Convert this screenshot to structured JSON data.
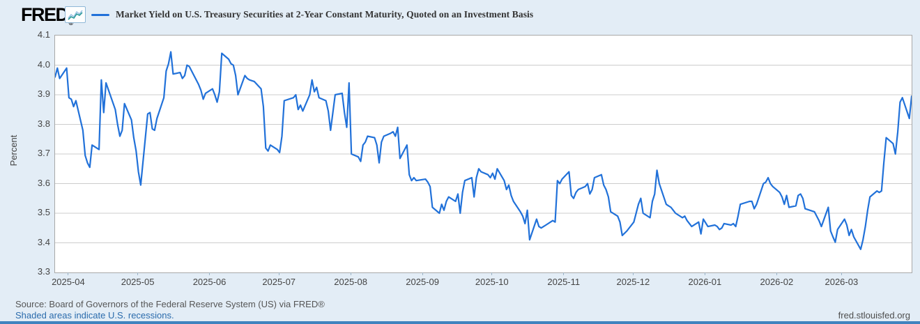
{
  "header": {
    "logo_text": "FRED",
    "logo_mark": "®",
    "series_title": "Market Yield on U.S. Treasury Securities at 2-Year Constant Maturity, Quoted on an Investment Basis"
  },
  "y_axis": {
    "title": "Percent"
  },
  "footer": {
    "source": "Source: Board of Governors of the Federal Reserve System (US) via FRED®",
    "note": "Shaded areas indicate U.S. recessions.",
    "site": "fred.stlouisfed.org"
  },
  "colors": {
    "line": "#2171d9",
    "background": "#e3edf6",
    "plot_background": "#ffffff",
    "plot_border": "#a8a8a8",
    "gridline": "#cccccc",
    "tick_mark": "#9db4c6",
    "axis_text": "#444444",
    "title_text": "#333333",
    "source_text": "#555555",
    "link_blue": "#2a6bac",
    "accent_bar": "#4083bf",
    "icon_border": "#8fb8d8",
    "icon_line_teal": "#2e9b9b",
    "icon_line_blue": "#9cc3e5"
  },
  "chart_data": {
    "type": "line",
    "title": "Market Yield on U.S. Treasury Securities at 2-Year Constant Maturity, Quoted on an Investment Basis",
    "xlabel": "",
    "ylabel": "Percent",
    "ylim": [
      3.3,
      4.1
    ],
    "y_ticks": [
      "4.1",
      "4.0",
      "3.9",
      "3.8",
      "3.7",
      "3.6",
      "3.5",
      "3.4",
      "3.3"
    ],
    "grid": "horizontal",
    "legend_position": "top-left",
    "x_domain": [
      "2025-03-26",
      "2026-03-31"
    ],
    "x_ticks": [
      {
        "label": "2025-04",
        "date": "2025-04-01"
      },
      {
        "label": "2025-05",
        "date": "2025-05-01"
      },
      {
        "label": "2025-06",
        "date": "2025-06-01"
      },
      {
        "label": "2025-07",
        "date": "2025-07-01"
      },
      {
        "label": "2025-08",
        "date": "2025-08-01"
      },
      {
        "label": "2025-09",
        "date": "2025-09-01"
      },
      {
        "label": "2025-10",
        "date": "2025-10-01"
      },
      {
        "label": "2025-11",
        "date": "2025-11-01"
      },
      {
        "label": "2025-12",
        "date": "2025-12-01"
      },
      {
        "label": "2026-01",
        "date": "2026-01-01"
      },
      {
        "label": "2026-02",
        "date": "2026-02-01"
      },
      {
        "label": "2026-03",
        "date": "2026-03-01"
      }
    ],
    "series": [
      {
        "name": "Market Yield on U.S. Treasury Securities at 2-Year Constant Maturity, Quoted on an Investment Basis",
        "color": "#2171d9",
        "points": [
          [
            "2025-03-26",
            3.96
          ],
          [
            "2025-03-27",
            3.99
          ],
          [
            "2025-03-28",
            3.955
          ],
          [
            "2025-03-31",
            3.99
          ],
          [
            "2025-04-01",
            3.89
          ],
          [
            "2025-04-02",
            3.885
          ],
          [
            "2025-04-03",
            3.86
          ],
          [
            "2025-04-04",
            3.88
          ],
          [
            "2025-04-07",
            3.78
          ],
          [
            "2025-04-08",
            3.695
          ],
          [
            "2025-04-09",
            3.67
          ],
          [
            "2025-04-10",
            3.655
          ],
          [
            "2025-04-11",
            3.73
          ],
          [
            "2025-04-14",
            3.715
          ],
          [
            "2025-04-15",
            3.95
          ],
          [
            "2025-04-16",
            3.84
          ],
          [
            "2025-04-17",
            3.94
          ],
          [
            "2025-04-21",
            3.85
          ],
          [
            "2025-04-22",
            3.8
          ],
          [
            "2025-04-23",
            3.76
          ],
          [
            "2025-04-24",
            3.78
          ],
          [
            "2025-04-25",
            3.87
          ],
          [
            "2025-04-28",
            3.815
          ],
          [
            "2025-04-29",
            3.755
          ],
          [
            "2025-04-30",
            3.71
          ],
          [
            "2025-05-01",
            3.64
          ],
          [
            "2025-05-02",
            3.595
          ],
          [
            "2025-05-05",
            3.835
          ],
          [
            "2025-05-06",
            3.84
          ],
          [
            "2025-05-07",
            3.785
          ],
          [
            "2025-05-08",
            3.78
          ],
          [
            "2025-05-09",
            3.82
          ],
          [
            "2025-05-12",
            3.89
          ],
          [
            "2025-05-13",
            3.98
          ],
          [
            "2025-05-14",
            4.005
          ],
          [
            "2025-05-15",
            4.045
          ],
          [
            "2025-05-16",
            3.97
          ],
          [
            "2025-05-19",
            3.975
          ],
          [
            "2025-05-20",
            3.955
          ],
          [
            "2025-05-21",
            3.965
          ],
          [
            "2025-05-22",
            4.0
          ],
          [
            "2025-05-23",
            3.995
          ],
          [
            "2025-05-27",
            3.935
          ],
          [
            "2025-05-28",
            3.915
          ],
          [
            "2025-05-29",
            3.885
          ],
          [
            "2025-05-30",
            3.905
          ],
          [
            "2025-06-02",
            3.92
          ],
          [
            "2025-06-03",
            3.9
          ],
          [
            "2025-06-04",
            3.875
          ],
          [
            "2025-06-05",
            3.91
          ],
          [
            "2025-06-06",
            4.04
          ],
          [
            "2025-06-09",
            4.02
          ],
          [
            "2025-06-10",
            4.005
          ],
          [
            "2025-06-11",
            4.0
          ],
          [
            "2025-06-12",
            3.965
          ],
          [
            "2025-06-13",
            3.9
          ],
          [
            "2025-06-16",
            3.965
          ],
          [
            "2025-06-17",
            3.955
          ],
          [
            "2025-06-18",
            3.95
          ],
          [
            "2025-06-20",
            3.945
          ],
          [
            "2025-06-23",
            3.92
          ],
          [
            "2025-06-24",
            3.86
          ],
          [
            "2025-06-25",
            3.72
          ],
          [
            "2025-06-26",
            3.71
          ],
          [
            "2025-06-27",
            3.73
          ],
          [
            "2025-06-30",
            3.715
          ],
          [
            "2025-07-01",
            3.705
          ],
          [
            "2025-07-02",
            3.76
          ],
          [
            "2025-07-03",
            3.88
          ],
          [
            "2025-07-07",
            3.89
          ],
          [
            "2025-07-08",
            3.9
          ],
          [
            "2025-07-09",
            3.85
          ],
          [
            "2025-07-10",
            3.865
          ],
          [
            "2025-07-11",
            3.845
          ],
          [
            "2025-07-14",
            3.9
          ],
          [
            "2025-07-15",
            3.95
          ],
          [
            "2025-07-16",
            3.91
          ],
          [
            "2025-07-17",
            3.925
          ],
          [
            "2025-07-18",
            3.89
          ],
          [
            "2025-07-21",
            3.88
          ],
          [
            "2025-07-22",
            3.845
          ],
          [
            "2025-07-23",
            3.78
          ],
          [
            "2025-07-24",
            3.84
          ],
          [
            "2025-07-25",
            3.9
          ],
          [
            "2025-07-28",
            3.905
          ],
          [
            "2025-07-29",
            3.84
          ],
          [
            "2025-07-30",
            3.79
          ],
          [
            "2025-07-31",
            3.94
          ],
          [
            "2025-08-01",
            3.7
          ],
          [
            "2025-08-04",
            3.69
          ],
          [
            "2025-08-05",
            3.675
          ],
          [
            "2025-08-06",
            3.73
          ],
          [
            "2025-08-07",
            3.74
          ],
          [
            "2025-08-08",
            3.76
          ],
          [
            "2025-08-11",
            3.755
          ],
          [
            "2025-08-12",
            3.73
          ],
          [
            "2025-08-13",
            3.67
          ],
          [
            "2025-08-14",
            3.74
          ],
          [
            "2025-08-15",
            3.76
          ],
          [
            "2025-08-18",
            3.77
          ],
          [
            "2025-08-19",
            3.775
          ],
          [
            "2025-08-20",
            3.76
          ],
          [
            "2025-08-21",
            3.79
          ],
          [
            "2025-08-22",
            3.685
          ],
          [
            "2025-08-25",
            3.73
          ],
          [
            "2025-08-26",
            3.63
          ],
          [
            "2025-08-27",
            3.61
          ],
          [
            "2025-08-28",
            3.62
          ],
          [
            "2025-08-29",
            3.61
          ],
          [
            "2025-09-02",
            3.615
          ],
          [
            "2025-09-03",
            3.605
          ],
          [
            "2025-09-04",
            3.59
          ],
          [
            "2025-09-05",
            3.52
          ],
          [
            "2025-09-08",
            3.5
          ],
          [
            "2025-09-09",
            3.53
          ],
          [
            "2025-09-10",
            3.51
          ],
          [
            "2025-09-11",
            3.54
          ],
          [
            "2025-09-12",
            3.555
          ],
          [
            "2025-09-15",
            3.54
          ],
          [
            "2025-09-16",
            3.565
          ],
          [
            "2025-09-17",
            3.5
          ],
          [
            "2025-09-18",
            3.57
          ],
          [
            "2025-09-19",
            3.61
          ],
          [
            "2025-09-22",
            3.62
          ],
          [
            "2025-09-23",
            3.555
          ],
          [
            "2025-09-24",
            3.62
          ],
          [
            "2025-09-25",
            3.65
          ],
          [
            "2025-09-26",
            3.64
          ],
          [
            "2025-09-29",
            3.63
          ],
          [
            "2025-09-30",
            3.62
          ],
          [
            "2025-10-01",
            3.635
          ],
          [
            "2025-10-02",
            3.615
          ],
          [
            "2025-10-03",
            3.65
          ],
          [
            "2025-10-06",
            3.61
          ],
          [
            "2025-10-07",
            3.58
          ],
          [
            "2025-10-08",
            3.595
          ],
          [
            "2025-10-09",
            3.56
          ],
          [
            "2025-10-10",
            3.54
          ],
          [
            "2025-10-13",
            3.505
          ],
          [
            "2025-10-14",
            3.49
          ],
          [
            "2025-10-15",
            3.465
          ],
          [
            "2025-10-16",
            3.51
          ],
          [
            "2025-10-17",
            3.41
          ],
          [
            "2025-10-20",
            3.48
          ],
          [
            "2025-10-21",
            3.455
          ],
          [
            "2025-10-22",
            3.45
          ],
          [
            "2025-10-23",
            3.455
          ],
          [
            "2025-10-24",
            3.46
          ],
          [
            "2025-10-27",
            3.475
          ],
          [
            "2025-10-28",
            3.47
          ],
          [
            "2025-10-29",
            3.61
          ],
          [
            "2025-10-30",
            3.6
          ],
          [
            "2025-10-31",
            3.615
          ],
          [
            "2025-11-03",
            3.64
          ],
          [
            "2025-11-04",
            3.56
          ],
          [
            "2025-11-05",
            3.55
          ],
          [
            "2025-11-06",
            3.57
          ],
          [
            "2025-11-07",
            3.58
          ],
          [
            "2025-11-10",
            3.59
          ],
          [
            "2025-11-11",
            3.6
          ],
          [
            "2025-11-12",
            3.565
          ],
          [
            "2025-11-13",
            3.58
          ],
          [
            "2025-11-14",
            3.62
          ],
          [
            "2025-11-17",
            3.63
          ],
          [
            "2025-11-18",
            3.595
          ],
          [
            "2025-11-19",
            3.58
          ],
          [
            "2025-11-20",
            3.555
          ],
          [
            "2025-11-21",
            3.505
          ],
          [
            "2025-11-24",
            3.49
          ],
          [
            "2025-11-25",
            3.47
          ],
          [
            "2025-11-26",
            3.425
          ],
          [
            "2025-11-28",
            3.44
          ],
          [
            "2025-12-01",
            3.47
          ],
          [
            "2025-12-02",
            3.5
          ],
          [
            "2025-12-03",
            3.53
          ],
          [
            "2025-12-04",
            3.55
          ],
          [
            "2025-12-05",
            3.5
          ],
          [
            "2025-12-08",
            3.485
          ],
          [
            "2025-12-09",
            3.54
          ],
          [
            "2025-12-10",
            3.565
          ],
          [
            "2025-12-11",
            3.645
          ],
          [
            "2025-12-12",
            3.6
          ],
          [
            "2025-12-15",
            3.53
          ],
          [
            "2025-12-16",
            3.525
          ],
          [
            "2025-12-17",
            3.52
          ],
          [
            "2025-12-18",
            3.51
          ],
          [
            "2025-12-19",
            3.5
          ],
          [
            "2025-12-22",
            3.485
          ],
          [
            "2025-12-23",
            3.49
          ],
          [
            "2025-12-24",
            3.475
          ],
          [
            "2025-12-26",
            3.455
          ],
          [
            "2025-12-29",
            3.47
          ],
          [
            "2025-12-30",
            3.43
          ],
          [
            "2025-12-31",
            3.48
          ],
          [
            "2026-01-02",
            3.455
          ],
          [
            "2026-01-05",
            3.46
          ],
          [
            "2026-01-06",
            3.455
          ],
          [
            "2026-01-07",
            3.445
          ],
          [
            "2026-01-08",
            3.45
          ],
          [
            "2026-01-09",
            3.465
          ],
          [
            "2026-01-12",
            3.46
          ],
          [
            "2026-01-13",
            3.465
          ],
          [
            "2026-01-14",
            3.455
          ],
          [
            "2026-01-15",
            3.49
          ],
          [
            "2026-01-16",
            3.53
          ],
          [
            "2026-01-20",
            3.54
          ],
          [
            "2026-01-21",
            3.54
          ],
          [
            "2026-01-22",
            3.515
          ],
          [
            "2026-01-23",
            3.53
          ],
          [
            "2026-01-26",
            3.6
          ],
          [
            "2026-01-27",
            3.605
          ],
          [
            "2026-01-28",
            3.62
          ],
          [
            "2026-01-29",
            3.6
          ],
          [
            "2026-01-30",
            3.59
          ],
          [
            "2026-02-02",
            3.57
          ],
          [
            "2026-02-03",
            3.555
          ],
          [
            "2026-02-04",
            3.53
          ],
          [
            "2026-02-05",
            3.56
          ],
          [
            "2026-02-06",
            3.52
          ],
          [
            "2026-02-09",
            3.525
          ],
          [
            "2026-02-10",
            3.56
          ],
          [
            "2026-02-11",
            3.565
          ],
          [
            "2026-02-12",
            3.55
          ],
          [
            "2026-02-13",
            3.515
          ],
          [
            "2026-02-17",
            3.505
          ],
          [
            "2026-02-18",
            3.49
          ],
          [
            "2026-02-19",
            3.475
          ],
          [
            "2026-02-20",
            3.455
          ],
          [
            "2026-02-23",
            3.52
          ],
          [
            "2026-02-24",
            3.44
          ],
          [
            "2026-02-25",
            3.42
          ],
          [
            "2026-02-26",
            3.402
          ],
          [
            "2026-02-27",
            3.445
          ],
          [
            "2026-03-02",
            3.48
          ],
          [
            "2026-03-03",
            3.46
          ],
          [
            "2026-03-04",
            3.425
          ],
          [
            "2026-03-05",
            3.445
          ],
          [
            "2026-03-06",
            3.42
          ],
          [
            "2026-03-09",
            3.378
          ],
          [
            "2026-03-10",
            3.41
          ],
          [
            "2026-03-11",
            3.455
          ],
          [
            "2026-03-12",
            3.51
          ],
          [
            "2026-03-13",
            3.555
          ],
          [
            "2026-03-16",
            3.575
          ],
          [
            "2026-03-17",
            3.57
          ],
          [
            "2026-03-18",
            3.575
          ],
          [
            "2026-03-19",
            3.67
          ],
          [
            "2026-03-20",
            3.755
          ],
          [
            "2026-03-23",
            3.735
          ],
          [
            "2026-03-24",
            3.7
          ],
          [
            "2026-03-25",
            3.775
          ],
          [
            "2026-03-26",
            3.875
          ],
          [
            "2026-03-27",
            3.89
          ],
          [
            "2026-03-30",
            3.82
          ],
          [
            "2026-03-31",
            3.895
          ]
        ]
      }
    ]
  }
}
